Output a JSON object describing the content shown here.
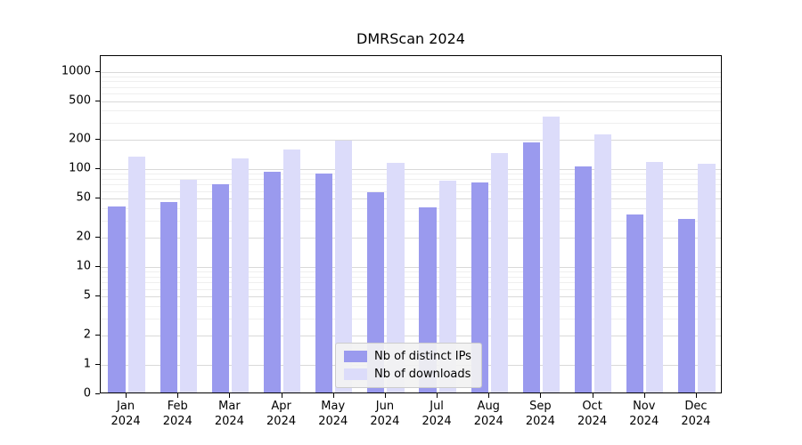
{
  "title": "DMRScan 2024",
  "chart_data": {
    "type": "bar",
    "title": "DMRScan 2024",
    "x_months": [
      "Jan",
      "Feb",
      "Mar",
      "Apr",
      "May",
      "Jun",
      "Jul",
      "Aug",
      "Sep",
      "Oct",
      "Nov",
      "Dec"
    ],
    "x_year": "2024",
    "series": [
      {
        "name": "Nb of distinct IPs",
        "color": "#9a9aee",
        "values": [
          40,
          45,
          68,
          90,
          88,
          56,
          39,
          70,
          180,
          102,
          33,
          30
        ]
      },
      {
        "name": "Nb of downloads",
        "color": "#dcdcfa",
        "values": [
          130,
          76,
          125,
          155,
          190,
          112,
          73,
          140,
          330,
          220,
          115,
          110
        ]
      }
    ],
    "y_ticks": [
      0,
      1,
      2,
      5,
      10,
      20,
      50,
      100,
      200,
      500,
      1000
    ],
    "y_minor_ticks": [
      3,
      4,
      6,
      7,
      8,
      9,
      30,
      40,
      60,
      70,
      80,
      90,
      300,
      400,
      600,
      700,
      800,
      900
    ],
    "y_scale": "symlog",
    "ylim": [
      0,
      1400
    ],
    "grid": true,
    "grid_color": "#d9d9d9",
    "background": "#ffffff",
    "legend_position": "lower center"
  }
}
